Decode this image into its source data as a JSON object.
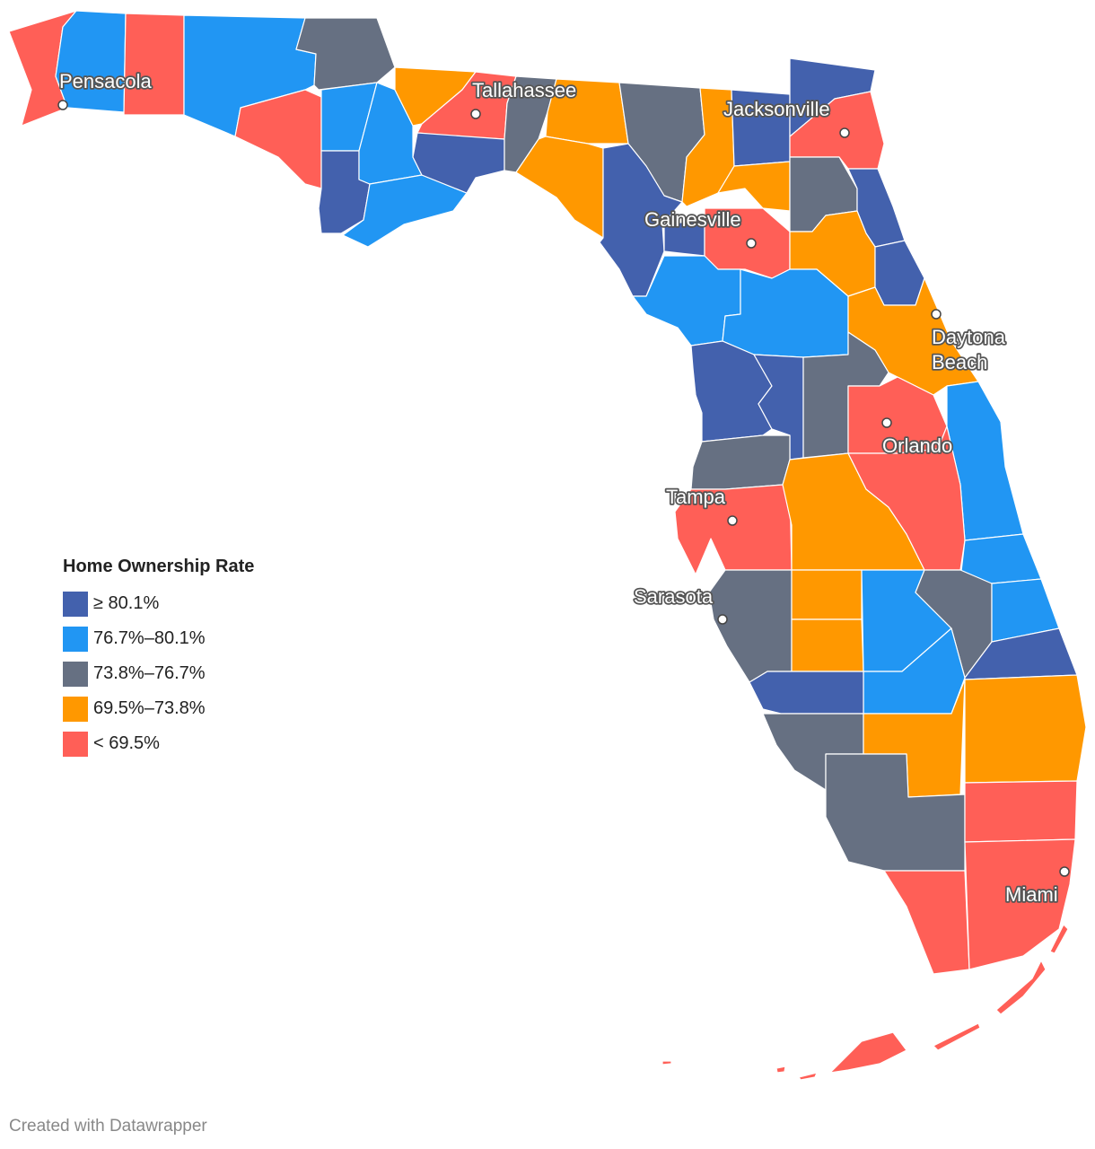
{
  "legend": {
    "title": "Home Ownership Rate",
    "items": [
      {
        "label": "≥ 80.1%",
        "color": "#4361ad"
      },
      {
        "label": "76.7%–80.1%",
        "color": "#2196f3"
      },
      {
        "label": "73.8%–76.7%",
        "color": "#667082"
      },
      {
        "label": "69.5%–73.8%",
        "color": "#ff9800"
      },
      {
        "label": "< 69.5%",
        "color": "#ff5f57"
      }
    ]
  },
  "cities": [
    {
      "name": "Pensacola"
    },
    {
      "name": "Tallahassee"
    },
    {
      "name": "Jacksonville"
    },
    {
      "name": "Gainesville"
    },
    {
      "name": "Daytona",
      "name2": "Beach"
    },
    {
      "name": "Orlando"
    },
    {
      "name": "Tampa"
    },
    {
      "name": "Sarasota"
    },
    {
      "name": "Miami"
    }
  ],
  "credit": "Created with Datawrapper"
}
